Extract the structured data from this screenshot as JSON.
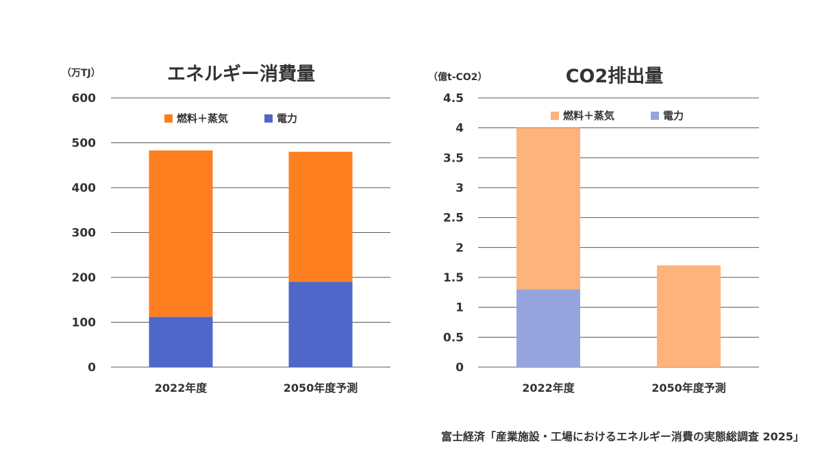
{
  "source": "富士経済「産業施設・工場におけるエネルギー消費の実態総調査 2025」",
  "chart_data": [
    {
      "type": "bar",
      "stacked": true,
      "title": "エネルギー消費量",
      "ylabel": "（万TJ）",
      "ylim": [
        0,
        600
      ],
      "yticks": [
        "0",
        "100",
        "200",
        "300",
        "400",
        "500",
        "600"
      ],
      "categories": [
        "2022年度",
        "2050年度予測"
      ],
      "series": [
        {
          "name": "電力",
          "color": "#4f67c8",
          "values": [
            112,
            190
          ]
        },
        {
          "name": "燃料＋蒸気",
          "color": "#fd7f20",
          "values": [
            371,
            290
          ]
        }
      ],
      "grid": true,
      "legend": "top"
    },
    {
      "type": "bar",
      "stacked": true,
      "title": "CO2排出量",
      "ylabel": "（億t-CO2）",
      "ylim": [
        0,
        4.5
      ],
      "yticks": [
        "0",
        "0.5",
        "1",
        "1.5",
        "2",
        "2.5",
        "3",
        "3.5",
        "4",
        "4.5"
      ],
      "categories": [
        "2022年度",
        "2050年度予測"
      ],
      "series": [
        {
          "name": "電力",
          "color": "#96a4de",
          "values": [
            1.3,
            0
          ]
        },
        {
          "name": "燃料＋蒸気",
          "color": "#feb27c",
          "values": [
            2.7,
            1.7
          ]
        }
      ],
      "grid": true,
      "legend": "top"
    }
  ]
}
